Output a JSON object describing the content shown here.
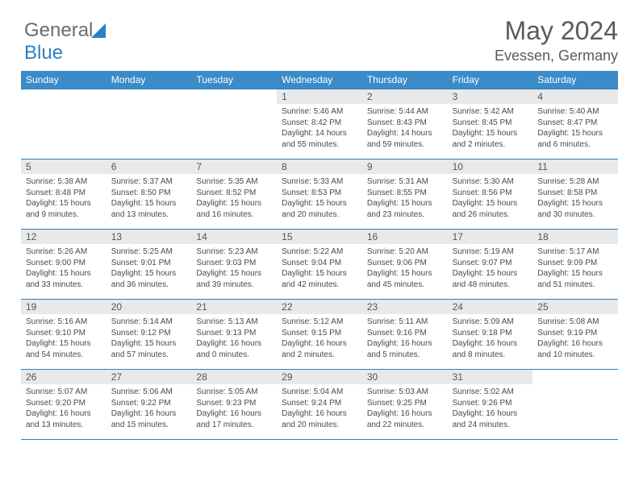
{
  "logo": {
    "text_a": "General",
    "text_b": "Blue"
  },
  "title": "May 2024",
  "location": "Evessen, Germany",
  "colors": {
    "header_bg": "#3b8bc9",
    "border": "#2d7fc1",
    "daynum_bg": "#e9e9e9",
    "text": "#4a4a4a"
  },
  "day_names": [
    "Sunday",
    "Monday",
    "Tuesday",
    "Wednesday",
    "Thursday",
    "Friday",
    "Saturday"
  ],
  "weeks": [
    [
      {
        "empty": true
      },
      {
        "empty": true
      },
      {
        "empty": true
      },
      {
        "day": "1",
        "sunrise": "Sunrise: 5:46 AM",
        "sunset": "Sunset: 8:42 PM",
        "daylight": "Daylight: 14 hours and 55 minutes."
      },
      {
        "day": "2",
        "sunrise": "Sunrise: 5:44 AM",
        "sunset": "Sunset: 8:43 PM",
        "daylight": "Daylight: 14 hours and 59 minutes."
      },
      {
        "day": "3",
        "sunrise": "Sunrise: 5:42 AM",
        "sunset": "Sunset: 8:45 PM",
        "daylight": "Daylight: 15 hours and 2 minutes."
      },
      {
        "day": "4",
        "sunrise": "Sunrise: 5:40 AM",
        "sunset": "Sunset: 8:47 PM",
        "daylight": "Daylight: 15 hours and 6 minutes."
      }
    ],
    [
      {
        "day": "5",
        "sunrise": "Sunrise: 5:38 AM",
        "sunset": "Sunset: 8:48 PM",
        "daylight": "Daylight: 15 hours and 9 minutes."
      },
      {
        "day": "6",
        "sunrise": "Sunrise: 5:37 AM",
        "sunset": "Sunset: 8:50 PM",
        "daylight": "Daylight: 15 hours and 13 minutes."
      },
      {
        "day": "7",
        "sunrise": "Sunrise: 5:35 AM",
        "sunset": "Sunset: 8:52 PM",
        "daylight": "Daylight: 15 hours and 16 minutes."
      },
      {
        "day": "8",
        "sunrise": "Sunrise: 5:33 AM",
        "sunset": "Sunset: 8:53 PM",
        "daylight": "Daylight: 15 hours and 20 minutes."
      },
      {
        "day": "9",
        "sunrise": "Sunrise: 5:31 AM",
        "sunset": "Sunset: 8:55 PM",
        "daylight": "Daylight: 15 hours and 23 minutes."
      },
      {
        "day": "10",
        "sunrise": "Sunrise: 5:30 AM",
        "sunset": "Sunset: 8:56 PM",
        "daylight": "Daylight: 15 hours and 26 minutes."
      },
      {
        "day": "11",
        "sunrise": "Sunrise: 5:28 AM",
        "sunset": "Sunset: 8:58 PM",
        "daylight": "Daylight: 15 hours and 30 minutes."
      }
    ],
    [
      {
        "day": "12",
        "sunrise": "Sunrise: 5:26 AM",
        "sunset": "Sunset: 9:00 PM",
        "daylight": "Daylight: 15 hours and 33 minutes."
      },
      {
        "day": "13",
        "sunrise": "Sunrise: 5:25 AM",
        "sunset": "Sunset: 9:01 PM",
        "daylight": "Daylight: 15 hours and 36 minutes."
      },
      {
        "day": "14",
        "sunrise": "Sunrise: 5:23 AM",
        "sunset": "Sunset: 9:03 PM",
        "daylight": "Daylight: 15 hours and 39 minutes."
      },
      {
        "day": "15",
        "sunrise": "Sunrise: 5:22 AM",
        "sunset": "Sunset: 9:04 PM",
        "daylight": "Daylight: 15 hours and 42 minutes."
      },
      {
        "day": "16",
        "sunrise": "Sunrise: 5:20 AM",
        "sunset": "Sunset: 9:06 PM",
        "daylight": "Daylight: 15 hours and 45 minutes."
      },
      {
        "day": "17",
        "sunrise": "Sunrise: 5:19 AM",
        "sunset": "Sunset: 9:07 PM",
        "daylight": "Daylight: 15 hours and 48 minutes."
      },
      {
        "day": "18",
        "sunrise": "Sunrise: 5:17 AM",
        "sunset": "Sunset: 9:09 PM",
        "daylight": "Daylight: 15 hours and 51 minutes."
      }
    ],
    [
      {
        "day": "19",
        "sunrise": "Sunrise: 5:16 AM",
        "sunset": "Sunset: 9:10 PM",
        "daylight": "Daylight: 15 hours and 54 minutes."
      },
      {
        "day": "20",
        "sunrise": "Sunrise: 5:14 AM",
        "sunset": "Sunset: 9:12 PM",
        "daylight": "Daylight: 15 hours and 57 minutes."
      },
      {
        "day": "21",
        "sunrise": "Sunrise: 5:13 AM",
        "sunset": "Sunset: 9:13 PM",
        "daylight": "Daylight: 16 hours and 0 minutes."
      },
      {
        "day": "22",
        "sunrise": "Sunrise: 5:12 AM",
        "sunset": "Sunset: 9:15 PM",
        "daylight": "Daylight: 16 hours and 2 minutes."
      },
      {
        "day": "23",
        "sunrise": "Sunrise: 5:11 AM",
        "sunset": "Sunset: 9:16 PM",
        "daylight": "Daylight: 16 hours and 5 minutes."
      },
      {
        "day": "24",
        "sunrise": "Sunrise: 5:09 AM",
        "sunset": "Sunset: 9:18 PM",
        "daylight": "Daylight: 16 hours and 8 minutes."
      },
      {
        "day": "25",
        "sunrise": "Sunrise: 5:08 AM",
        "sunset": "Sunset: 9:19 PM",
        "daylight": "Daylight: 16 hours and 10 minutes."
      }
    ],
    [
      {
        "day": "26",
        "sunrise": "Sunrise: 5:07 AM",
        "sunset": "Sunset: 9:20 PM",
        "daylight": "Daylight: 16 hours and 13 minutes."
      },
      {
        "day": "27",
        "sunrise": "Sunrise: 5:06 AM",
        "sunset": "Sunset: 9:22 PM",
        "daylight": "Daylight: 16 hours and 15 minutes."
      },
      {
        "day": "28",
        "sunrise": "Sunrise: 5:05 AM",
        "sunset": "Sunset: 9:23 PM",
        "daylight": "Daylight: 16 hours and 17 minutes."
      },
      {
        "day": "29",
        "sunrise": "Sunrise: 5:04 AM",
        "sunset": "Sunset: 9:24 PM",
        "daylight": "Daylight: 16 hours and 20 minutes."
      },
      {
        "day": "30",
        "sunrise": "Sunrise: 5:03 AM",
        "sunset": "Sunset: 9:25 PM",
        "daylight": "Daylight: 16 hours and 22 minutes."
      },
      {
        "day": "31",
        "sunrise": "Sunrise: 5:02 AM",
        "sunset": "Sunset: 9:26 PM",
        "daylight": "Daylight: 16 hours and 24 minutes."
      },
      {
        "empty": true
      }
    ]
  ]
}
